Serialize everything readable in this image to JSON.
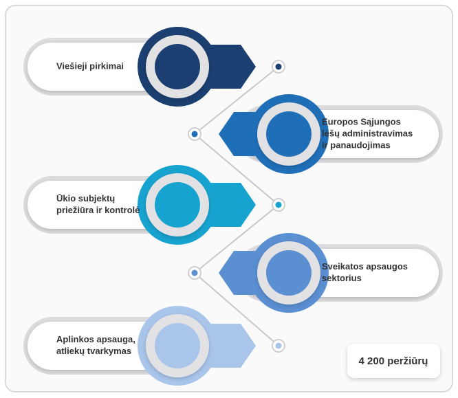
{
  "items": [
    {
      "lines": [
        "Viešieji pirkimai"
      ]
    },
    {
      "lines": [
        "Europos Sąjungos",
        "lėšų administravimas",
        "ir panaudojimas"
      ]
    },
    {
      "lines": [
        "Ūkio subjektų",
        "priežiūra ir kontrolė"
      ]
    },
    {
      "lines": [
        "Sveikatos apsaugos",
        "sektorius"
      ]
    },
    {
      "lines": [
        "Aplinkos apsauga,",
        "atliekų tvarkymas"
      ]
    }
  ],
  "views": "4 200 peržiūrų"
}
